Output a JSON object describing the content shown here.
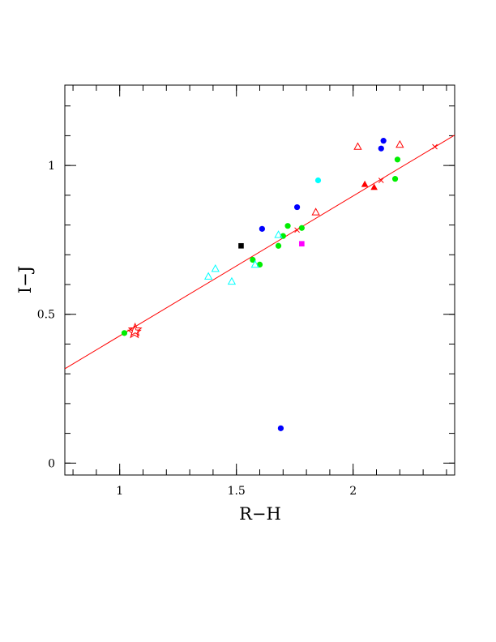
{
  "chart_data": {
    "type": "scatter",
    "title": "",
    "xlabel": "R−H",
    "ylabel": "I−J",
    "xlim": [
      0.765,
      2.435
    ],
    "ylim": [
      -0.04,
      1.27
    ],
    "x_ticks": [
      "1",
      "1.5",
      "2"
    ],
    "y_ticks": [
      "0",
      "0.5",
      "1"
    ],
    "x_tick_values": [
      1,
      1.5,
      2
    ],
    "y_tick_values": [
      0,
      0.5,
      1
    ],
    "x_minor_step": 0.1,
    "y_minor_step": 0.1,
    "grid": false,
    "legend": "none",
    "fit_line": {
      "color": "#ff0000",
      "x": [
        0.765,
        2.435
      ],
      "y": [
        0.317,
        1.102
      ]
    },
    "series": [
      {
        "marker": "filled-circle",
        "color": "#00ee00",
        "points": [
          [
            1.02,
            0.437
          ],
          [
            1.57,
            0.683
          ],
          [
            1.6,
            0.667
          ],
          [
            1.68,
            0.73
          ],
          [
            1.7,
            0.763
          ],
          [
            1.72,
            0.797
          ],
          [
            1.78,
            0.79
          ],
          [
            2.18,
            0.955
          ],
          [
            2.19,
            1.02
          ]
        ]
      },
      {
        "marker": "filled-circle",
        "color": "#0000ff",
        "points": [
          [
            1.61,
            0.787
          ],
          [
            1.76,
            0.86
          ],
          [
            1.69,
            0.117
          ],
          [
            2.12,
            1.057
          ],
          [
            2.13,
            1.083
          ]
        ]
      },
      {
        "marker": "filled-circle",
        "color": "#00ffff",
        "points": [
          [
            1.85,
            0.95
          ]
        ]
      },
      {
        "marker": "filled-square",
        "color": "#000000",
        "points": [
          [
            1.52,
            0.73
          ]
        ]
      },
      {
        "marker": "filled-square",
        "color": "#ff00ff",
        "points": [
          [
            1.78,
            0.737
          ]
        ]
      },
      {
        "marker": "filled-triangle",
        "color": "#ff0000",
        "points": [
          [
            2.05,
            0.937
          ],
          [
            2.09,
            0.927
          ]
        ]
      },
      {
        "marker": "open-triangle",
        "color": "#ff0000",
        "points": [
          [
            1.84,
            0.843
          ],
          [
            2.02,
            1.063
          ],
          [
            2.2,
            1.07
          ]
        ]
      },
      {
        "marker": "open-triangle",
        "color": "#00ffff",
        "points": [
          [
            1.38,
            0.627
          ],
          [
            1.41,
            0.653
          ],
          [
            1.48,
            0.61
          ],
          [
            1.58,
            0.667
          ],
          [
            1.68,
            0.767
          ]
        ]
      },
      {
        "marker": "cross",
        "color": "#ff0000",
        "points": [
          [
            1.76,
            0.783
          ],
          [
            2.12,
            0.95
          ],
          [
            2.35,
            1.063
          ]
        ]
      },
      {
        "marker": "open-star",
        "color": "#ff0000",
        "points": [
          [
            1.066,
            0.447
          ],
          [
            1.063,
            0.44
          ]
        ]
      }
    ]
  }
}
